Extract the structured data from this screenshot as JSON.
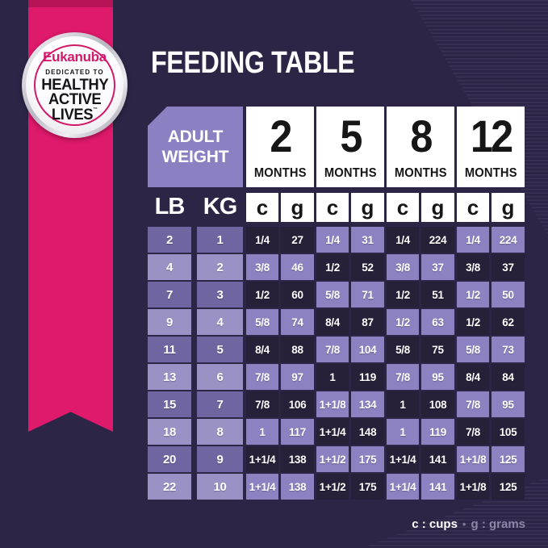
{
  "title": "FEEDING TABLE",
  "badge": {
    "brand": "Eukanuba",
    "tagline": "DEDICATED TO",
    "line1": "HEALTHY",
    "line2": "ACTIVE",
    "line3": "LIVES",
    "trademark": "™"
  },
  "table": {
    "corner_line1": "ADULT",
    "corner_line2": "WEIGHT",
    "months": [
      {
        "number": "2",
        "label": "MONTHS"
      },
      {
        "number": "5",
        "label": "MONTHS"
      },
      {
        "number": "8",
        "label": "MONTHS"
      },
      {
        "number": "12",
        "label": "MONTHS"
      }
    ],
    "weight_units": [
      "LB",
      "KG"
    ],
    "unit_cols": [
      "c",
      "g",
      "c",
      "g",
      "c",
      "g",
      "c",
      "g"
    ]
  },
  "legend": {
    "cups": "c : cups",
    "separator": "•",
    "grams": "g : grams"
  },
  "colors": {
    "background": "#2d2546",
    "ribbon_pink": "#df196b",
    "brand_pink": "#d3186a",
    "cell_dark": "#262039",
    "cell_purple": "#8c81c1",
    "weight_cell_odd": "#6f65a1",
    "weight_cell_even": "#9a91c5",
    "month_box": "#ffffff",
    "text_light": "#ffffff",
    "text_dark": "#161616"
  },
  "chart_data": {
    "type": "table",
    "title": "FEEDING TABLE",
    "columns": [
      "LB",
      "KG",
      "2 MONTHS c",
      "2 MONTHS g",
      "5 MONTHS c",
      "5 MONTHS g",
      "8 MONTHS c",
      "8 MONTHS g",
      "12 MONTHS c",
      "12 MONTHS g"
    ],
    "rows": [
      {
        "lb": "2",
        "kg": "1",
        "values": [
          "1/4",
          "27",
          "1/4",
          "31",
          "1/4",
          "224",
          "1/4",
          "224"
        ]
      },
      {
        "lb": "4",
        "kg": "2",
        "values": [
          "3/8",
          "46",
          "1/2",
          "52",
          "3/8",
          "37",
          "3/8",
          "37"
        ]
      },
      {
        "lb": "7",
        "kg": "3",
        "values": [
          "1/2",
          "60",
          "5/8",
          "71",
          "1/2",
          "51",
          "1/2",
          "50"
        ]
      },
      {
        "lb": "9",
        "kg": "4",
        "values": [
          "5/8",
          "74",
          "8/4",
          "87",
          "1/2",
          "63",
          "1/2",
          "62"
        ]
      },
      {
        "lb": "11",
        "kg": "5",
        "values": [
          "8/4",
          "88",
          "7/8",
          "104",
          "5/8",
          "75",
          "5/8",
          "73"
        ]
      },
      {
        "lb": "13",
        "kg": "6",
        "values": [
          "7/8",
          "97",
          "1",
          "119",
          "7/8",
          "95",
          "8/4",
          "84"
        ]
      },
      {
        "lb": "15",
        "kg": "7",
        "values": [
          "7/8",
          "106",
          "1+1/8",
          "134",
          "1",
          "108",
          "7/8",
          "95"
        ]
      },
      {
        "lb": "18",
        "kg": "8",
        "values": [
          "1",
          "117",
          "1+1/4",
          "148",
          "1",
          "119",
          "7/8",
          "105"
        ]
      },
      {
        "lb": "20",
        "kg": "9",
        "values": [
          "1+1/4",
          "138",
          "1+1/2",
          "175",
          "1+1/4",
          "141",
          "1+1/8",
          "125"
        ]
      },
      {
        "lb": "22",
        "kg": "10",
        "values": [
          "1+1/4",
          "138",
          "1+1/2",
          "175",
          "1+1/4",
          "141",
          "1+1/8",
          "125"
        ]
      }
    ],
    "legend": "c : cups • g : grams"
  }
}
